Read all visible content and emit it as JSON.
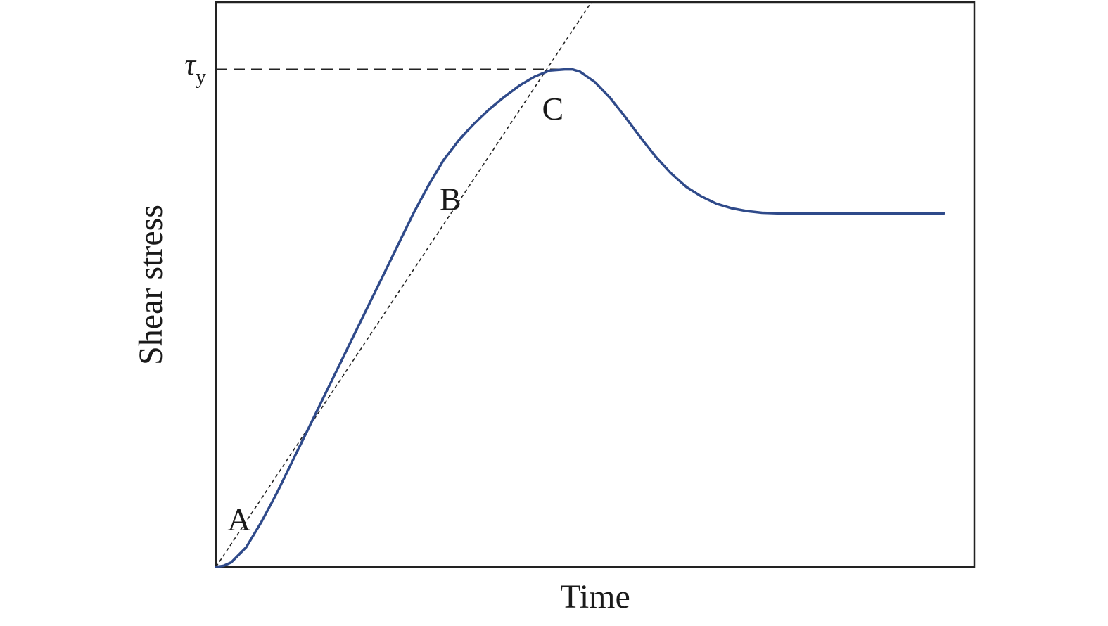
{
  "chart_data": {
    "type": "line",
    "title": "",
    "xlabel": "Time",
    "ylabel": "Shear stress",
    "xlim": [
      0,
      100
    ],
    "ylim": [
      0,
      100
    ],
    "grid": false,
    "legend": "none",
    "series": [
      {
        "color": "#2f4a8a",
        "x": [
          0,
          1,
          2,
          4,
          6,
          8,
          10,
          12,
          14,
          16,
          18,
          20,
          22,
          24,
          26,
          28,
          30,
          32,
          33,
          34,
          36,
          38,
          40,
          42,
          44,
          46,
          47,
          48,
          50,
          52,
          54,
          56,
          58,
          60,
          62,
          64,
          66,
          68,
          70,
          72,
          74,
          76,
          78,
          80,
          82,
          84,
          86,
          88,
          90,
          92,
          94,
          96
        ],
        "y": [
          0,
          0.2,
          0.8,
          3.5,
          8,
          13,
          18.5,
          24,
          29.5,
          35,
          40.5,
          46,
          51.5,
          57,
          62.5,
          67.5,
          72,
          75.5,
          77,
          78.4,
          81,
          83.2,
          85.2,
          86.8,
          87.9,
          88.1,
          88.1,
          87.7,
          85.8,
          83,
          79.6,
          76,
          72.6,
          69.7,
          67.3,
          65.6,
          64.3,
          63.5,
          63.0,
          62.7,
          62.6,
          62.6,
          62.6,
          62.6,
          62.6,
          62.6,
          62.6,
          62.6,
          62.6,
          62.6,
          62.6,
          62.6
        ]
      }
    ],
    "tangent_line": {
      "x": [
        0,
        49.5
      ],
      "y": [
        0,
        100
      ],
      "style": "dotted"
    },
    "yield_line": {
      "x": [
        0,
        46
      ],
      "y": [
        88.1,
        88.1
      ],
      "style": "dashed",
      "label": "τ",
      "label_sub": "y"
    },
    "annotations": [
      {
        "text": "A",
        "x": 1.5,
        "y": 6.5
      },
      {
        "text": "B",
        "x": 29.5,
        "y": 63.2
      },
      {
        "text": "C",
        "x": 43,
        "y": 79.2
      }
    ]
  }
}
